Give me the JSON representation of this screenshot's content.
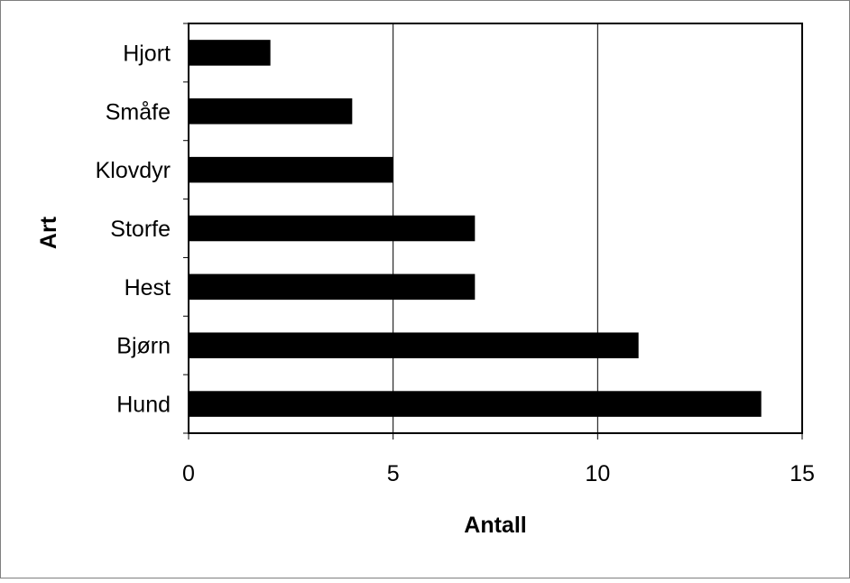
{
  "chart_data": {
    "type": "bar",
    "orientation": "horizontal",
    "categories": [
      "Hjort",
      "Småfe",
      "Klovdyr",
      "Storfe",
      "Hest",
      "Bjørn",
      "Hund"
    ],
    "values": [
      2,
      4,
      5,
      7,
      7,
      11,
      14
    ],
    "xlabel": "Antall",
    "ylabel": "Art",
    "xlim": [
      0,
      15
    ],
    "xticks": [
      "0",
      "5",
      "10",
      "15"
    ],
    "grid": "vertical gridlines",
    "legend": "none",
    "colors": {
      "bar": "#000000",
      "grid": "#000000",
      "plot_border": "#000000",
      "frame_border": "#7f7f7f",
      "background": "#ffffff"
    }
  }
}
